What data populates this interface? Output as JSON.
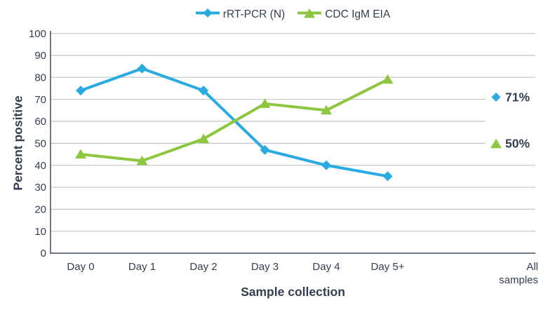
{
  "chart_data": {
    "type": "line",
    "title": "",
    "xlabel": "Sample collection",
    "ylabel": "Percent positive",
    "categories": [
      "Day 0",
      "Day 1",
      "Day 2",
      "Day 3",
      "Day 4",
      "Day 5+"
    ],
    "all_samples_category": "All samples",
    "ylim": [
      0,
      100
    ],
    "ytick_interval": 10,
    "grid": true,
    "legend_position": "top-center",
    "series": [
      {
        "name": "rRT-PCR (N)",
        "marker": "diamond",
        "color": "#29ABE2",
        "values": [
          74,
          84,
          74,
          47,
          40,
          35
        ],
        "all_samples_value": 71,
        "all_samples_label": "71%"
      },
      {
        "name": "CDC IgM EIA",
        "marker": "triangle",
        "color": "#8DC63F",
        "values": [
          45,
          42,
          52,
          68,
          65,
          79
        ],
        "all_samples_value": 50,
        "all_samples_label": "50%"
      }
    ],
    "colors": {
      "text": "#333E50",
      "grid": "#C9CACC",
      "axis": "#414B5A",
      "background": "#FFFFFF"
    }
  }
}
